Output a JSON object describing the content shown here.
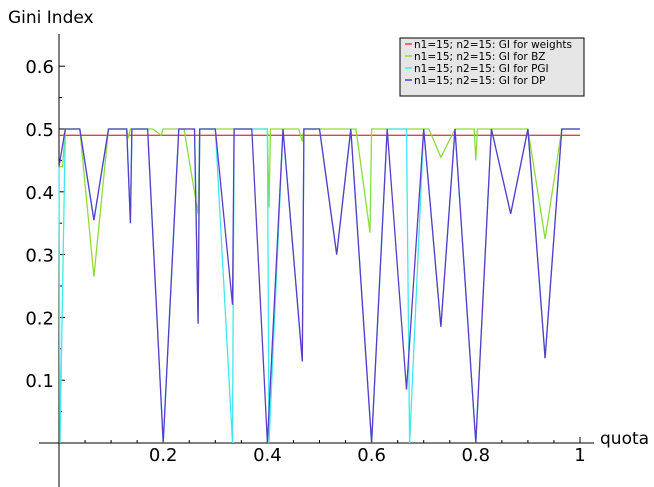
{
  "chart_data": {
    "type": "line",
    "xlabel": "quota",
    "ylabel": "Gini Index",
    "xlim": [
      0,
      1
    ],
    "ylim": [
      0,
      0.62
    ],
    "xticks": [
      0.2,
      0.4,
      0.6,
      0.8,
      1
    ],
    "xtick_labels": [
      "0.2",
      "0.4",
      "0.6",
      "0.8",
      "1"
    ],
    "yticks": [
      0.1,
      0.2,
      0.3,
      0.4,
      0.5,
      0.6
    ],
    "ytick_labels": [
      "0.1",
      "0.2",
      "0.3",
      "0.4",
      "0.5",
      "0.6"
    ],
    "legend_position": "top-right",
    "series": [
      {
        "name": "n1=15; n2=15: GI for weights",
        "color": "#e0443e",
        "x": [
          0.0,
          1.0
        ],
        "y": [
          0.49,
          0.49
        ]
      },
      {
        "name": "n1=15; n2=15: GI for BZ",
        "color": "#8edc3c",
        "x": [
          0.0,
          0.007,
          0.012,
          0.013,
          0.02,
          0.04,
          0.067,
          0.095,
          0.13,
          0.133,
          0.137,
          0.14,
          0.18,
          0.196,
          0.2,
          0.204,
          0.24,
          0.267,
          0.27,
          0.273,
          0.32,
          0.33,
          0.333,
          0.336,
          0.34,
          0.39,
          0.4,
          0.403,
          0.406,
          0.41,
          0.46,
          0.467,
          0.47,
          0.473,
          0.52,
          0.533,
          0.57,
          0.597,
          0.6,
          0.603,
          0.65,
          0.66,
          0.667,
          0.673,
          0.68,
          0.71,
          0.733,
          0.76,
          0.797,
          0.8,
          0.803,
          0.84,
          0.867,
          0.9,
          0.933,
          0.965,
          1.0
        ],
        "y": [
          0.44,
          0.44,
          0.5,
          0.5,
          0.5,
          0.5,
          0.265,
          0.5,
          0.5,
          0.485,
          0.5,
          0.5,
          0.5,
          0.49,
          0.5,
          0.5,
          0.5,
          0.365,
          0.5,
          0.5,
          0.5,
          0.5,
          0.5,
          0.5,
          0.5,
          0.5,
          0.5,
          0.375,
          0.5,
          0.5,
          0.5,
          0.48,
          0.5,
          0.5,
          0.5,
          0.5,
          0.5,
          0.335,
          0.5,
          0.5,
          0.5,
          0.5,
          0.5,
          0.5,
          0.5,
          0.5,
          0.455,
          0.5,
          0.5,
          0.45,
          0.5,
          0.5,
          0.5,
          0.5,
          0.325,
          0.5,
          0.5
        ]
      },
      {
        "name": "n1=15; n2=15: GI for PGI",
        "color": "#40e8f0",
        "x": [
          0.0,
          0.002,
          0.012,
          0.02,
          0.04,
          0.067,
          0.095,
          0.13,
          0.137,
          0.14,
          0.17,
          0.2,
          0.23,
          0.26,
          0.267,
          0.27,
          0.3,
          0.333,
          0.336,
          0.37,
          0.4,
          0.403,
          0.43,
          0.467,
          0.47,
          0.5,
          0.533,
          0.56,
          0.6,
          0.63,
          0.667,
          0.673,
          0.7,
          0.733,
          0.76,
          0.8,
          0.83,
          0.867,
          0.9,
          0.933,
          0.965,
          1.0
        ],
        "y": [
          0.44,
          0.0,
          0.5,
          0.5,
          0.5,
          0.355,
          0.5,
          0.5,
          0.35,
          0.5,
          0.5,
          0.0,
          0.5,
          0.5,
          0.19,
          0.5,
          0.5,
          0.0,
          0.5,
          0.5,
          0.5,
          0.0,
          0.5,
          0.13,
          0.5,
          0.5,
          0.3,
          0.5,
          0.0,
          0.5,
          0.5,
          0.0,
          0.5,
          0.185,
          0.5,
          0.0,
          0.5,
          0.365,
          0.5,
          0.135,
          0.5,
          0.5
        ]
      },
      {
        "name": "n1=15; n2=15: GI for DP",
        "color": "#5a3cc8",
        "x": [
          0.0,
          0.012,
          0.02,
          0.04,
          0.067,
          0.095,
          0.13,
          0.137,
          0.14,
          0.17,
          0.2,
          0.23,
          0.26,
          0.267,
          0.27,
          0.3,
          0.333,
          0.336,
          0.37,
          0.4,
          0.43,
          0.467,
          0.47,
          0.5,
          0.533,
          0.56,
          0.6,
          0.63,
          0.667,
          0.7,
          0.733,
          0.76,
          0.8,
          0.83,
          0.867,
          0.9,
          0.933,
          0.965,
          1.0
        ],
        "y": [
          0.44,
          0.5,
          0.5,
          0.5,
          0.355,
          0.5,
          0.5,
          0.35,
          0.5,
          0.5,
          0.0,
          0.5,
          0.5,
          0.19,
          0.5,
          0.5,
          0.22,
          0.5,
          0.5,
          0.0,
          0.5,
          0.13,
          0.5,
          0.5,
          0.3,
          0.5,
          0.0,
          0.5,
          0.085,
          0.5,
          0.185,
          0.5,
          0.0,
          0.5,
          0.365,
          0.5,
          0.135,
          0.5,
          0.5
        ]
      }
    ]
  }
}
